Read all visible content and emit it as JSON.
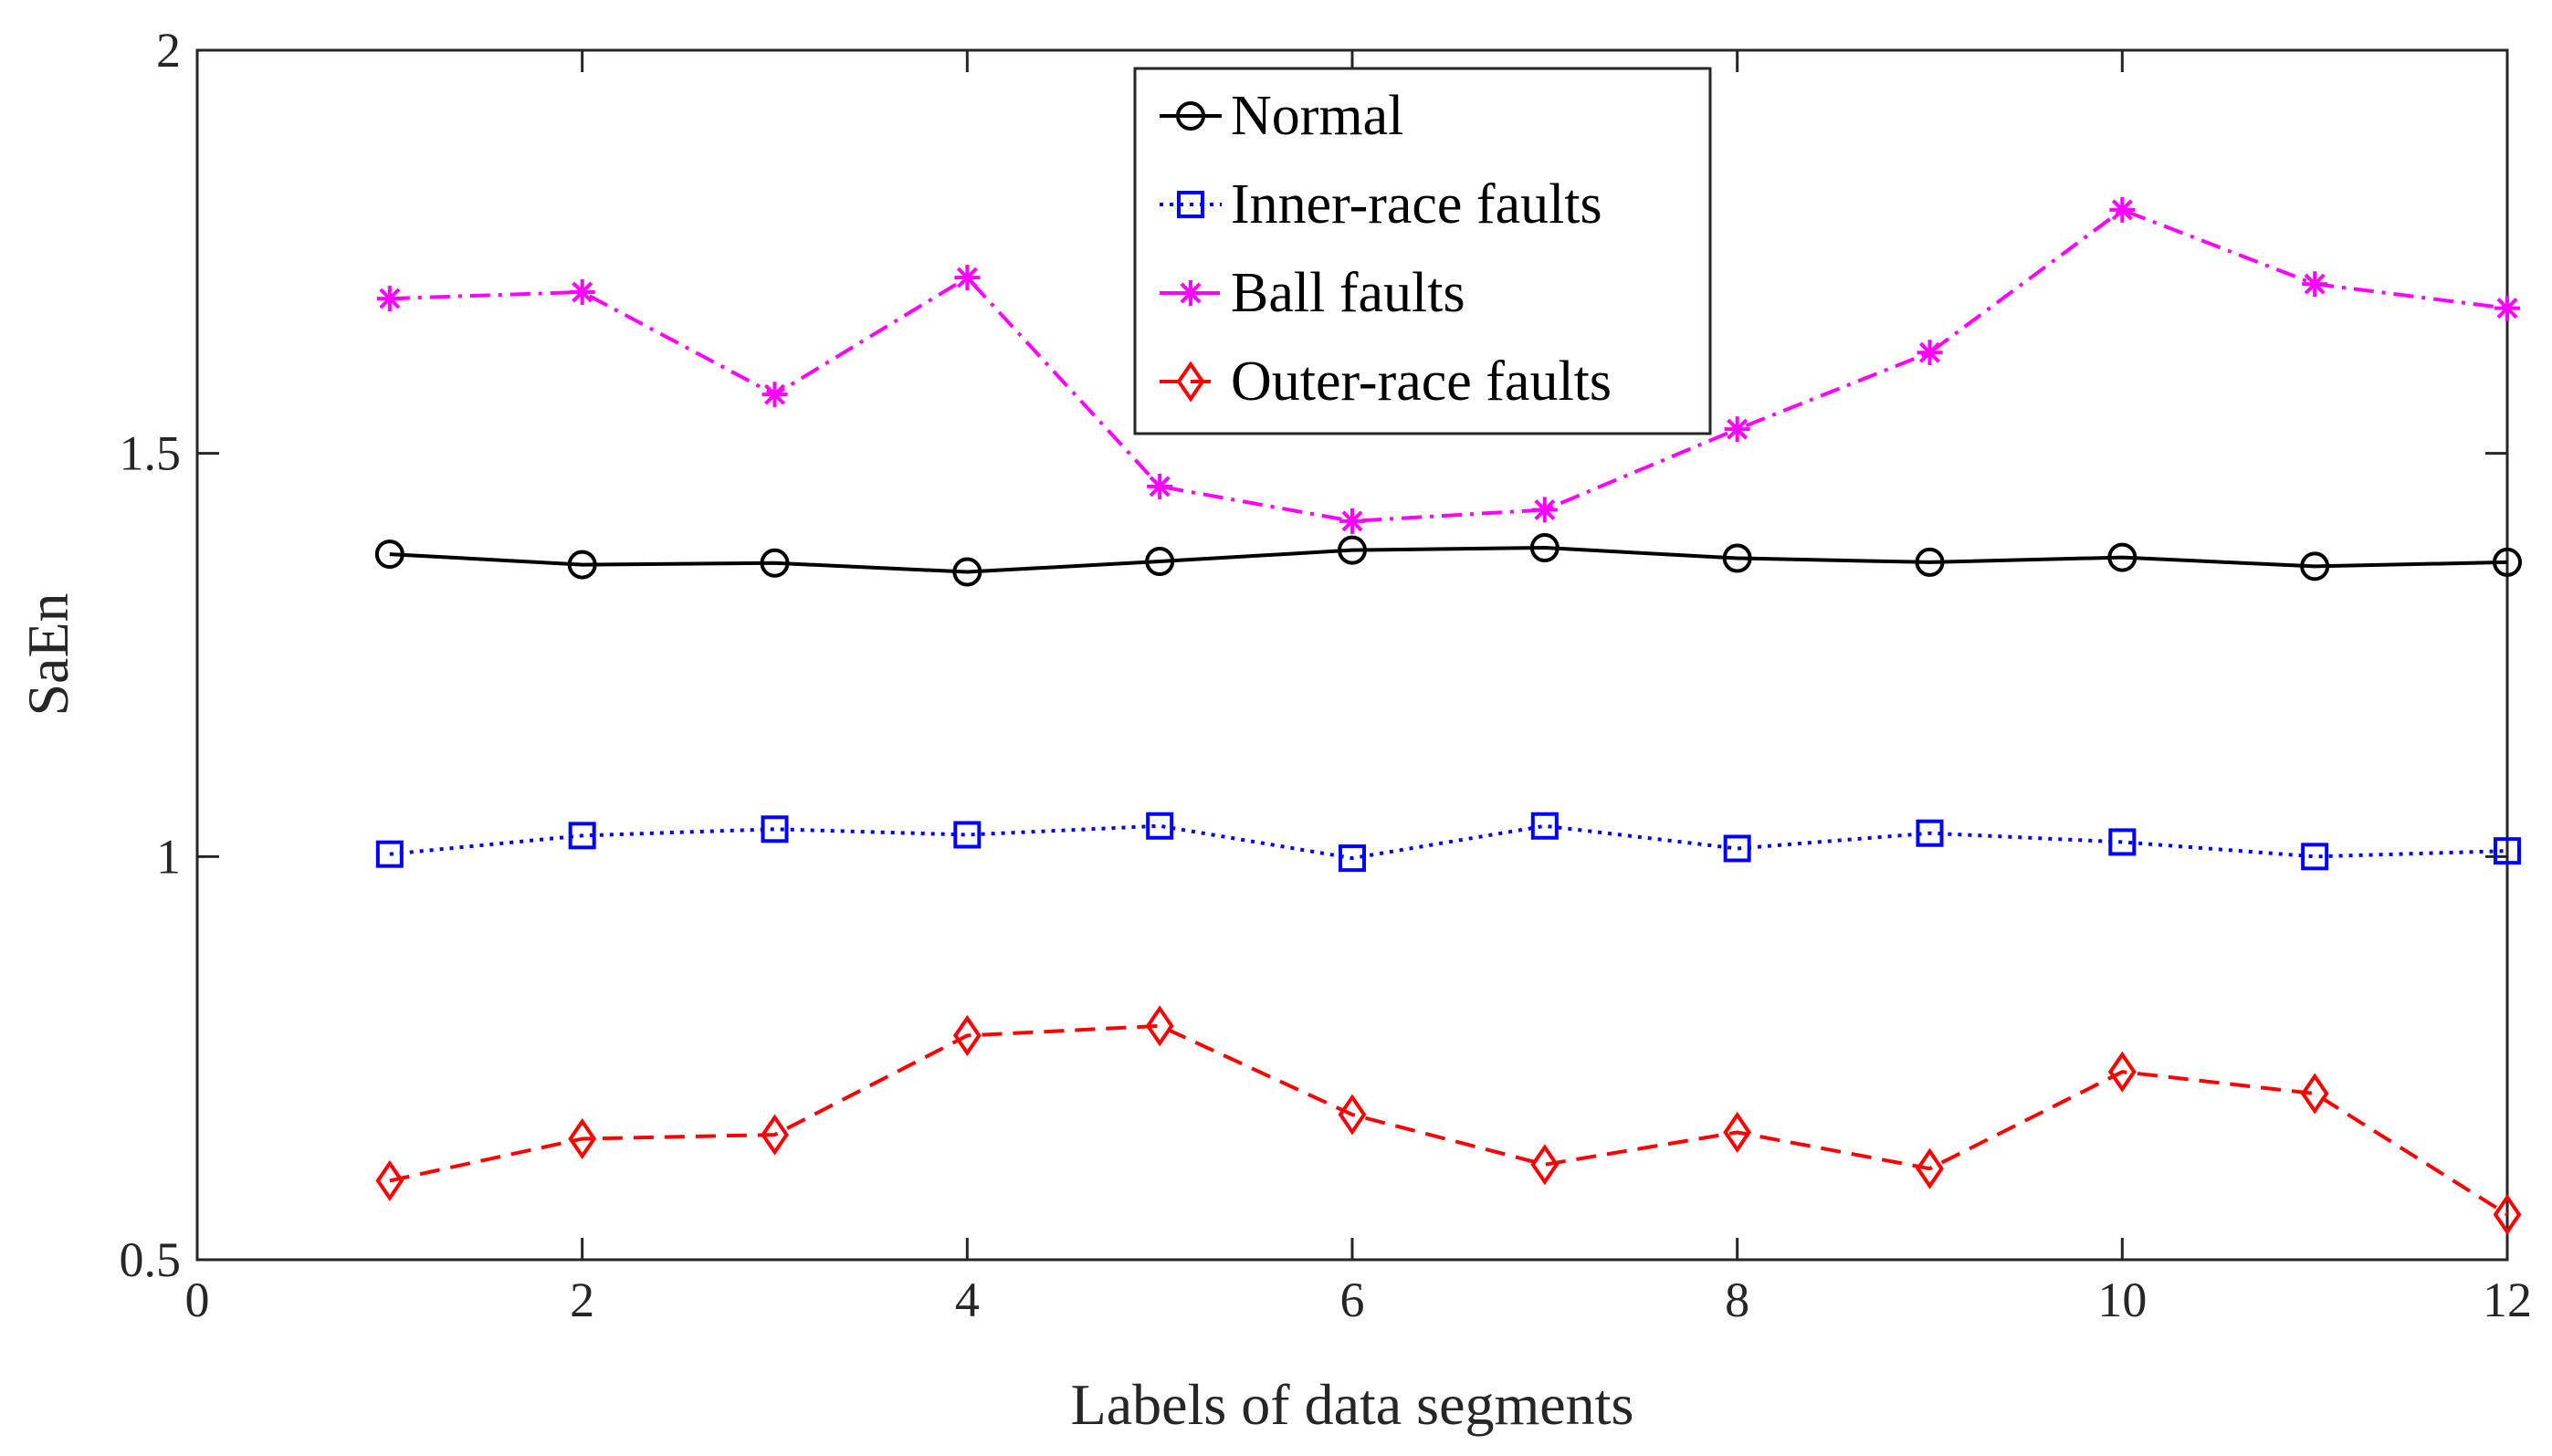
{
  "chart_data": {
    "type": "line",
    "title": "",
    "xlabel": "Labels of data segments",
    "ylabel": "SaEn",
    "xlim": [
      0,
      12
    ],
    "ylim": [
      0.5,
      2
    ],
    "xticks": [
      0,
      2,
      4,
      6,
      8,
      10,
      12
    ],
    "xtick_labels": [
      "0",
      "2",
      "4",
      "6",
      "8",
      "10",
      "12"
    ],
    "yticks": [
      0.5,
      1,
      1.5,
      2
    ],
    "ytick_labels": [
      "0.5",
      "1",
      "1.5",
      "2"
    ],
    "grid": false,
    "legend_position": "top-center",
    "x": [
      1,
      2,
      3,
      4,
      5,
      6,
      7,
      8,
      9,
      10,
      11,
      12
    ],
    "series": [
      {
        "name": "Normal",
        "color": "#000000",
        "line_style": "solid",
        "marker": "circle",
        "values": [
          1.375,
          1.362,
          1.364,
          1.353,
          1.366,
          1.38,
          1.383,
          1.37,
          1.365,
          1.371,
          1.36,
          1.365
        ]
      },
      {
        "name": "Inner-race faults",
        "color": "#0000ff",
        "line_style": "dotted",
        "marker": "square",
        "values": [
          1.003,
          1.026,
          1.034,
          1.027,
          1.038,
          0.998,
          1.038,
          1.01,
          1.029,
          1.018,
          1.0,
          1.007
        ]
      },
      {
        "name": "Ball faults",
        "color": "#ff00ff",
        "line_style": "dashdot",
        "marker": "asterisk",
        "values": [
          1.692,
          1.7,
          1.573,
          1.718,
          1.459,
          1.416,
          1.43,
          1.53,
          1.625,
          1.802,
          1.71,
          1.68
        ]
      },
      {
        "name": "Outer-race faults",
        "color": "#ff0000",
        "line_style": "dashed",
        "marker": "diamond",
        "values": [
          0.598,
          0.65,
          0.655,
          0.778,
          0.79,
          0.68,
          0.618,
          0.658,
          0.613,
          0.733,
          0.706,
          0.556
        ]
      }
    ]
  }
}
